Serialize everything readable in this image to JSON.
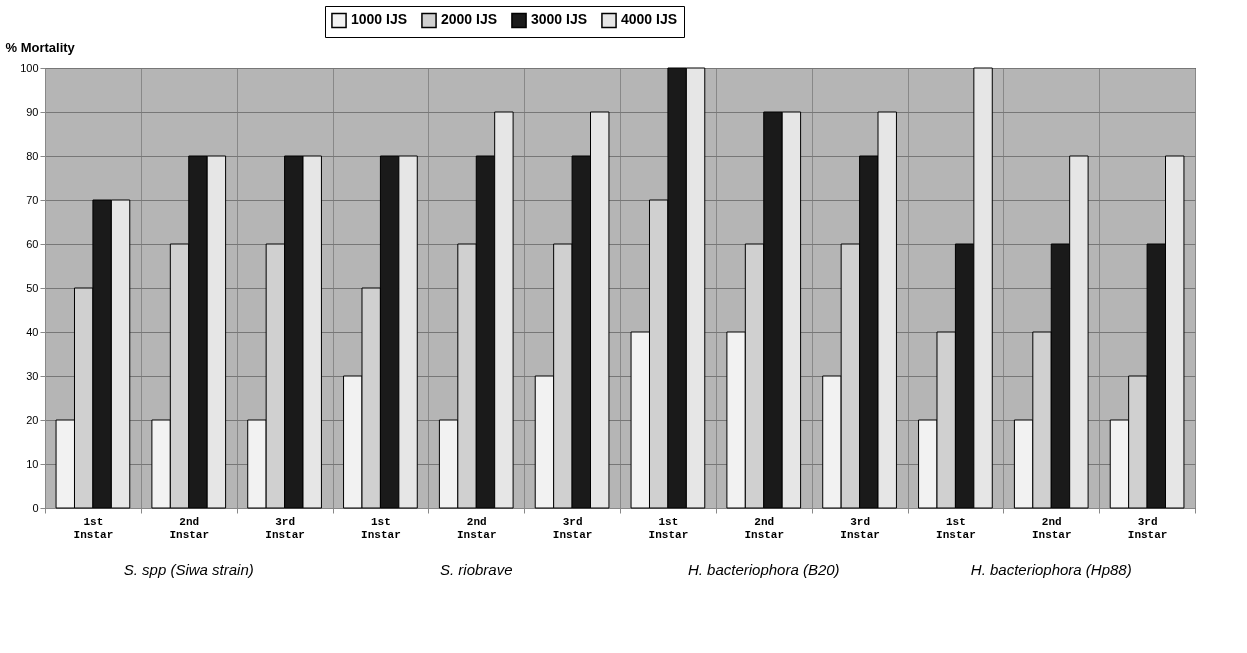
{
  "chart_data": {
    "type": "bar",
    "ylabel": "% Mortality",
    "categories": [
      "1st Instar",
      "2nd Instar",
      "3rd Instar",
      "1st Instar",
      "2nd Instar",
      "3rd Instar",
      "1st Instar",
      "2nd Instar",
      "3rd Instar",
      "1st Instar",
      "2nd Instar",
      "3rd Instar"
    ],
    "series": [
      {
        "name": "1000 IJS",
        "color": "#f2f2f2",
        "values": [
          20,
          20,
          20,
          30,
          20,
          30,
          40,
          40,
          30,
          20,
          20,
          20
        ]
      },
      {
        "name": "2000 IJS",
        "color": "#d0d0d0",
        "values": [
          50,
          60,
          60,
          50,
          60,
          60,
          70,
          60,
          60,
          40,
          40,
          30
        ]
      },
      {
        "name": "3000 IJS",
        "color": "#1a1a1a",
        "values": [
          70,
          80,
          80,
          80,
          80,
          80,
          100,
          90,
          80,
          60,
          60,
          60
        ]
      },
      {
        "name": "4000 IJS",
        "color": "#e6e6e6",
        "values": [
          70,
          80,
          80,
          80,
          90,
          90,
          100,
          90,
          90,
          100,
          80,
          80
        ]
      }
    ],
    "ylim": [
      0,
      100
    ],
    "yticks": [
      0,
      10,
      20,
      30,
      40,
      50,
      60,
      70,
      80,
      90,
      100
    ],
    "grid": "y",
    "legend": "top",
    "annotations": [
      "S. spp (Siwa strain)",
      "S. riobrave",
      "H. bacteriophora (B20)",
      "H. bacteriophora (Hp88)"
    ]
  }
}
